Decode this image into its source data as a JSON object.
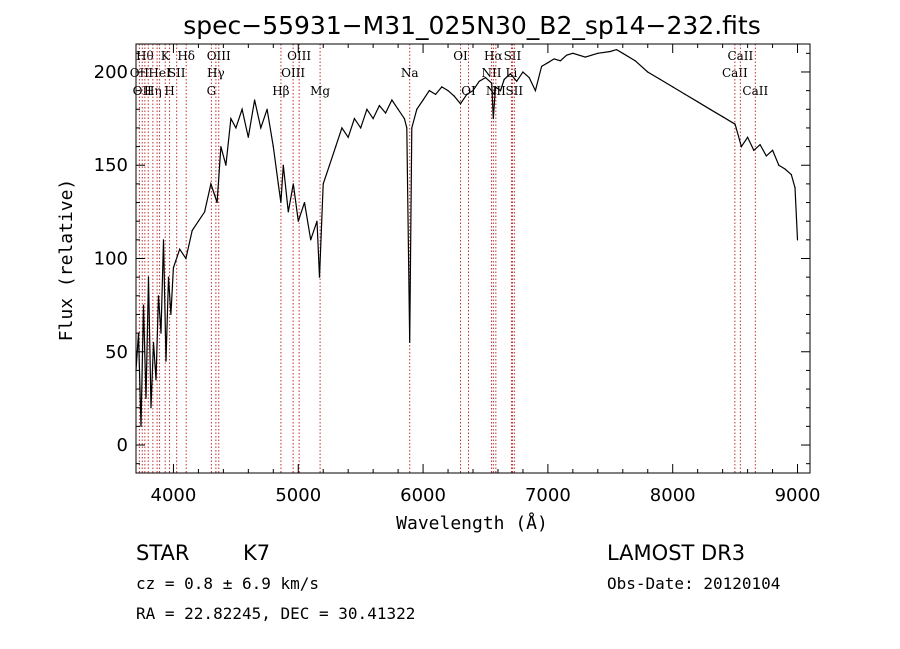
{
  "chart_data": {
    "type": "line",
    "title": "spec−55931−M31_025N30_B2_sp14−232.fits",
    "xlabel": "Wavelength (Å)",
    "ylabel": "Flux (relative)",
    "xlim": [
      3700,
      9100
    ],
    "ylim": [
      -15,
      215
    ],
    "xticks": [
      4000,
      5000,
      6000,
      7000,
      8000,
      9000
    ],
    "yticks": [
      0,
      50,
      100,
      150,
      200
    ],
    "series": [
      {
        "name": "flux",
        "color": "#000000",
        "x": [
          3700,
          3720,
          3740,
          3760,
          3780,
          3800,
          3820,
          3840,
          3860,
          3880,
          3900,
          3920,
          3940,
          3960,
          3980,
          4000,
          4050,
          4100,
          4150,
          4200,
          4250,
          4300,
          4350,
          4380,
          4420,
          4460,
          4500,
          4550,
          4600,
          4650,
          4700,
          4750,
          4800,
          4840,
          4861,
          4880,
          4920,
          4960,
          5000,
          5050,
          5100,
          5150,
          5170,
          5200,
          5250,
          5300,
          5350,
          5400,
          5450,
          5500,
          5550,
          5600,
          5650,
          5700,
          5750,
          5800,
          5850,
          5870,
          5893,
          5910,
          5950,
          6000,
          6050,
          6100,
          6150,
          6200,
          6250,
          6300,
          6350,
          6400,
          6450,
          6500,
          6550,
          6563,
          6580,
          6620,
          6650,
          6700,
          6750,
          6800,
          6850,
          6900,
          6950,
          7000,
          7050,
          7100,
          7150,
          7200,
          7300,
          7400,
          7500,
          7550,
          7600,
          7700,
          7800,
          7900,
          8000,
          8100,
          8200,
          8300,
          8400,
          8500,
          8550,
          8600,
          8650,
          8700,
          8750,
          8800,
          8850,
          8900,
          8950,
          8980,
          9000
        ],
        "y": [
          40,
          60,
          10,
          75,
          25,
          90,
          20,
          55,
          35,
          80,
          60,
          110,
          45,
          90,
          70,
          95,
          105,
          100,
          115,
          120,
          125,
          140,
          130,
          160,
          150,
          175,
          170,
          180,
          165,
          185,
          170,
          180,
          160,
          140,
          130,
          150,
          125,
          140,
          120,
          130,
          110,
          120,
          90,
          140,
          150,
          160,
          170,
          165,
          175,
          170,
          180,
          175,
          182,
          178,
          185,
          180,
          175,
          170,
          55,
          170,
          180,
          185,
          190,
          188,
          192,
          190,
          187,
          183,
          188,
          190,
          195,
          197,
          194,
          175,
          192,
          190,
          196,
          199,
          195,
          200,
          197,
          190,
          203,
          205,
          207,
          206,
          209,
          210,
          208,
          210,
          211,
          212,
          210,
          206,
          200,
          196,
          192,
          188,
          184,
          180,
          176,
          172,
          160,
          165,
          158,
          161,
          155,
          158,
          150,
          148,
          145,
          138,
          110
        ]
      }
    ],
    "lines": [
      {
        "x": 3727,
        "label": "OII",
        "row": 1
      },
      {
        "x": 3750,
        "label": "OΙΙ",
        "row": 2
      },
      {
        "x": 3771,
        "label": "Hθ",
        "row": 0
      },
      {
        "x": 3798,
        "label": "",
        "row": 0
      },
      {
        "x": 3835,
        "label": "Hη",
        "row": 2
      },
      {
        "x": 3869,
        "label": "",
        "row": 0
      },
      {
        "x": 3889,
        "label": "HeI",
        "row": 1
      },
      {
        "x": 3934,
        "label": "K",
        "row": 0
      },
      {
        "x": 3969,
        "label": "H",
        "row": 2
      },
      {
        "x": 4026,
        "label": "SII",
        "row": 1
      },
      {
        "x": 4102,
        "label": "Hδ",
        "row": 0
      },
      {
        "x": 4304,
        "label": "G",
        "row": 2
      },
      {
        "x": 4340,
        "label": "Hγ",
        "row": 1
      },
      {
        "x": 4363,
        "label": "OIII",
        "row": 0
      },
      {
        "x": 4861,
        "label": "Hβ",
        "row": 2
      },
      {
        "x": 4959,
        "label": "OIII",
        "row": 1
      },
      {
        "x": 5007,
        "label": "OIII",
        "row": 0
      },
      {
        "x": 5175,
        "label": "Mg",
        "row": 2
      },
      {
        "x": 5893,
        "label": "Na",
        "row": 1
      },
      {
        "x": 6300,
        "label": "OI",
        "row": 0
      },
      {
        "x": 6364,
        "label": "OI",
        "row": 2
      },
      {
        "x": 6548,
        "label": "NII",
        "row": 1
      },
      {
        "x": 6563,
        "label": "Hα",
        "row": 0
      },
      {
        "x": 6583,
        "label": "NII",
        "row": 2
      },
      {
        "x": 6708,
        "label": "Li",
        "row": 1
      },
      {
        "x": 6716,
        "label": "SII",
        "row": 0
      },
      {
        "x": 6731,
        "label": "SII",
        "row": 2
      },
      {
        "x": 8498,
        "label": "CaII",
        "row": 1
      },
      {
        "x": 8542,
        "label": "CaII",
        "row": 0
      },
      {
        "x": 8662,
        "label": "CaII",
        "row": 2
      }
    ]
  },
  "info": {
    "class": "STAR",
    "subclass": "K7",
    "survey": "LAMOST DR3",
    "cz": "cz = 0.8 ± 6.9 km/s",
    "obs_date": "Obs-Date: 20120104",
    "coords": "RA =  22.82245, DEC =  30.41322"
  },
  "colors": {
    "line_marker": "#c03030",
    "spectrum": "#000000",
    "axis": "#000000"
  }
}
